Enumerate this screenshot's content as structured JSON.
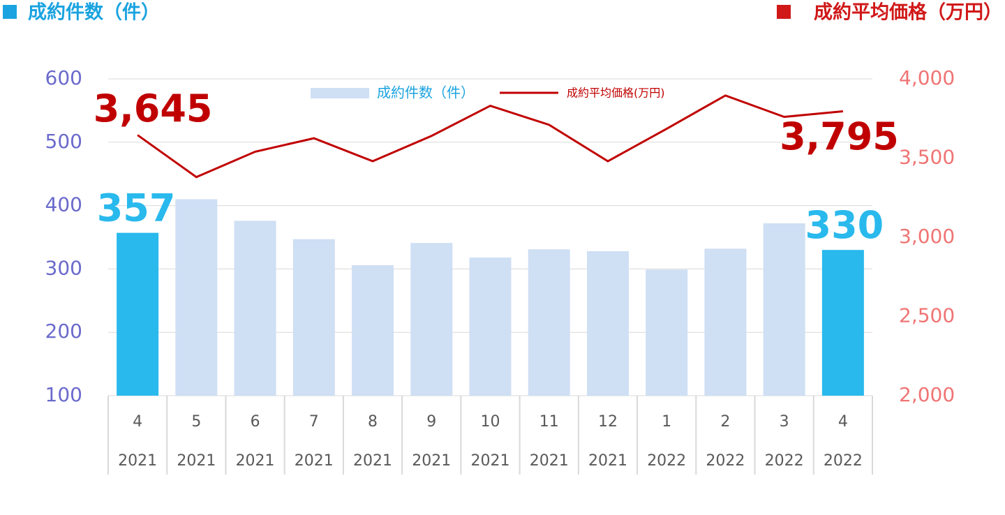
{
  "chart_data": {
    "type": "bar_line",
    "y_label": "成約件数（件）",
    "y2_label": "成約平均価格（万円）",
    "categories": [
      "4",
      "5",
      "6",
      "7",
      "8",
      "9",
      "10",
      "11",
      "12",
      "1",
      "2",
      "3",
      "4"
    ],
    "years": [
      "2021",
      "2021",
      "2021",
      "2021",
      "2021",
      "2021",
      "2021",
      "2021",
      "2021",
      "2022",
      "2022",
      "2022",
      "2022"
    ],
    "series": [
      {
        "name": "成約件数（件）",
        "type": "bar",
        "color": "#cfdff4",
        "colors": [
          "#29b9ed",
          "#cfdff4",
          "#cfdff4",
          "#cfdff4",
          "#cfdff4",
          "#cfdff4",
          "#cfdff4",
          "#cfdff4",
          "#cfdff4",
          "#cfdff4",
          "#cfdff4",
          "#cfdff4",
          "#29b9ed"
        ],
        "values": [
          357,
          410,
          376,
          347,
          306,
          341,
          318,
          331,
          328,
          299,
          332,
          372,
          330
        ],
        "value_labels": [
          "357",
          null,
          null,
          null,
          null,
          null,
          null,
          null,
          null,
          null,
          null,
          null,
          "330"
        ]
      },
      {
        "name": "成約平均価格(万円)",
        "type": "line",
        "axis": "y2",
        "color": "#c00000",
        "values": [
          3645,
          3380,
          3540,
          3625,
          3480,
          3640,
          3830,
          3710,
          3480,
          3685,
          3895,
          3760,
          3795
        ],
        "value_labels": [
          "3,645",
          null,
          null,
          null,
          null,
          null,
          null,
          null,
          null,
          null,
          null,
          null,
          "3,795"
        ]
      }
    ],
    "ylim": [
      100,
      600
    ],
    "yticks": [
      100,
      200,
      300,
      400,
      500,
      600
    ],
    "y2lim": [
      2000,
      4000
    ],
    "y2ticks": [
      {
        "value": 2000,
        "label": "2,000"
      },
      {
        "value": 2500,
        "label": "2,500"
      },
      {
        "value": 3000,
        "label": "3,000"
      },
      {
        "value": 3500,
        "label": "3,500"
      },
      {
        "value": 4000,
        "label": "4,000"
      }
    ],
    "grid": true,
    "legend": "top"
  }
}
